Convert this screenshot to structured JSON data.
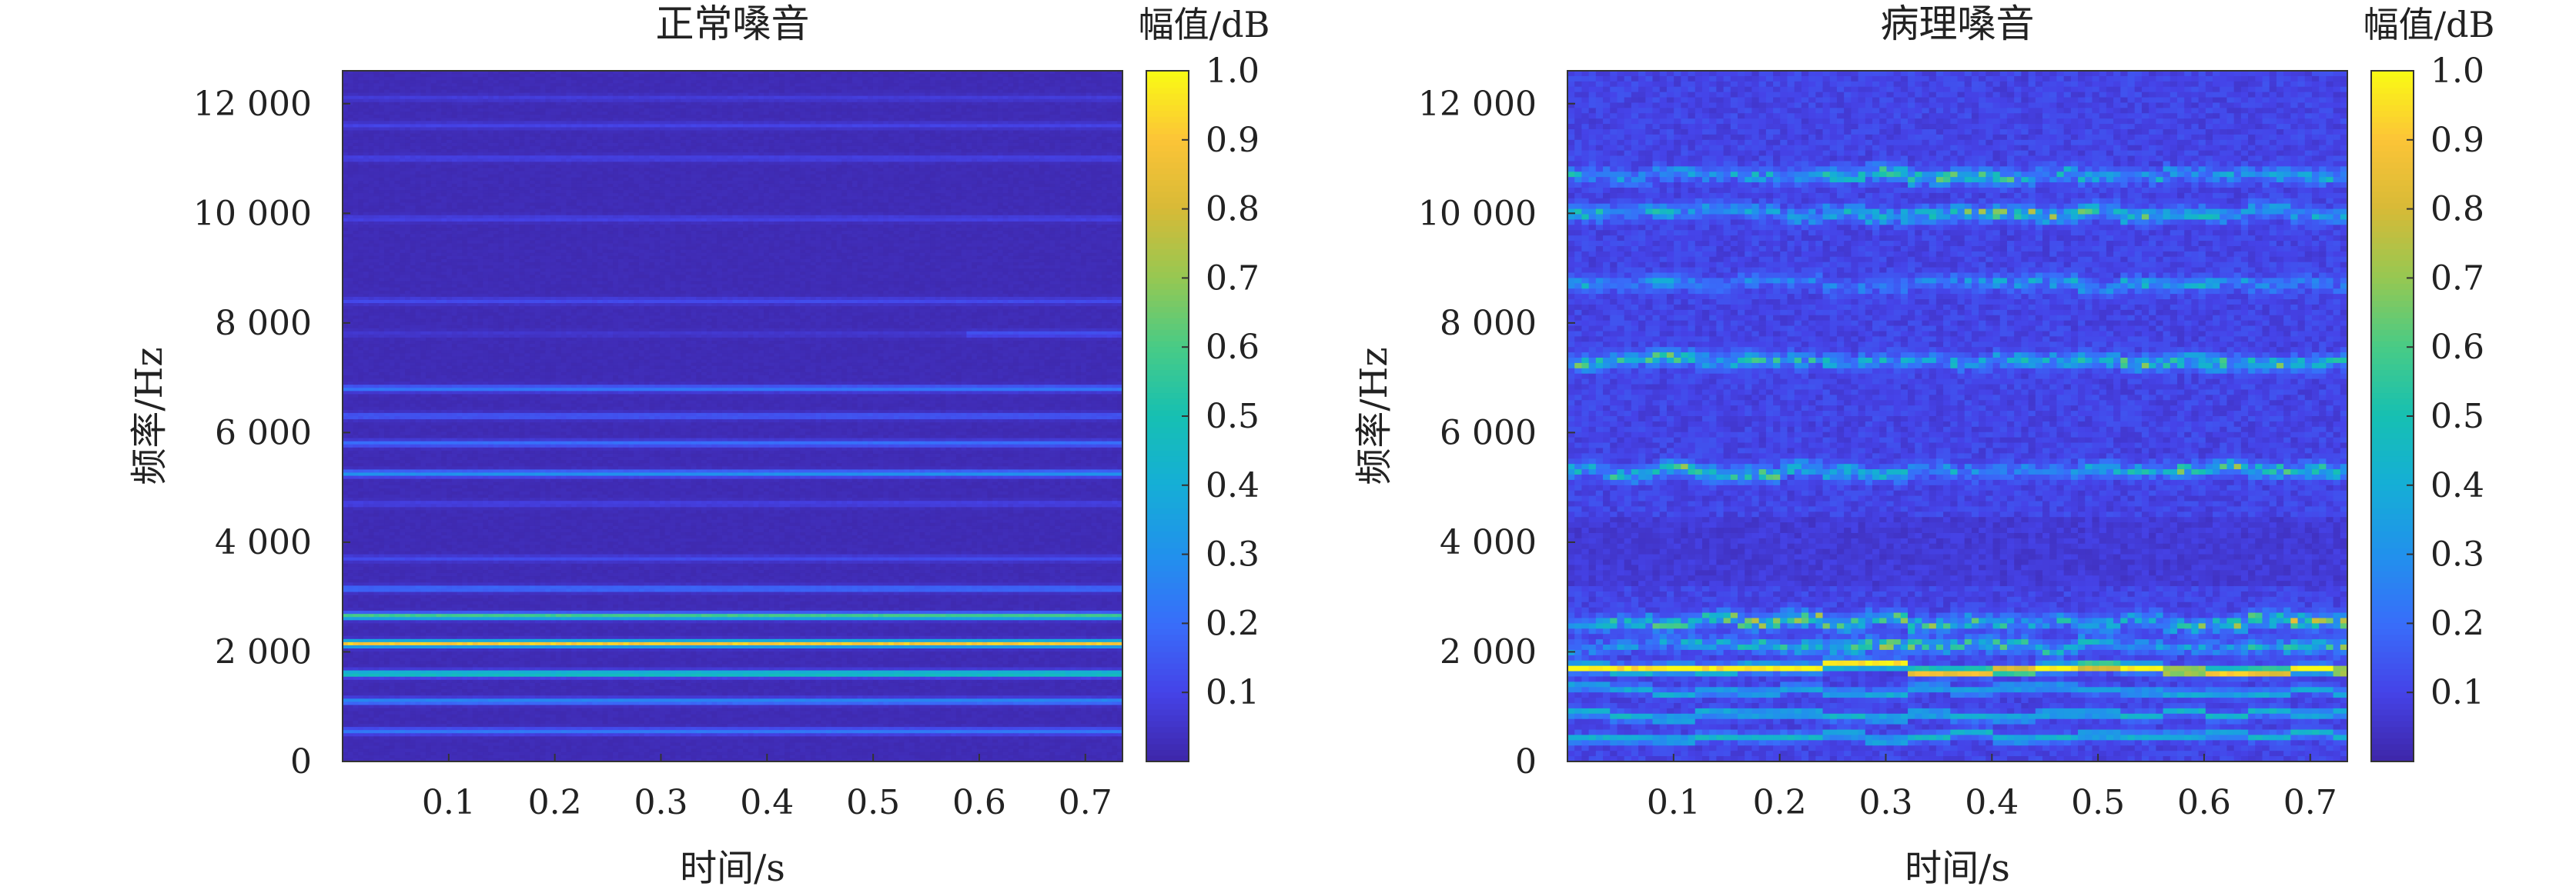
{
  "chart_data": [
    {
      "type": "heatmap",
      "title": "正常嗓音",
      "xlabel": "时间/s",
      "ylabel": "频率/Hz",
      "xlim": [
        0,
        0.735
      ],
      "ylim": [
        0,
        12600
      ],
      "x_ticks": [
        0.1,
        0.2,
        0.3,
        0.4,
        0.5,
        0.6,
        0.7
      ],
      "x_tick_labels": [
        "0.1",
        "0.2",
        "0.3",
        "0.4",
        "0.5",
        "0.6",
        "0.7"
      ],
      "y_ticks": [
        0,
        2000,
        4000,
        6000,
        8000,
        10000,
        12000
      ],
      "y_tick_labels": [
        "0",
        "2 000",
        "4 000",
        "6 000",
        "8 000",
        "10 000",
        "12 000"
      ],
      "colorbar": {
        "title": "幅值/dB",
        "range": [
          0,
          1.0
        ],
        "ticks": [
          0.1,
          0.2,
          0.3,
          0.4,
          0.5,
          0.6,
          0.7,
          0.8,
          0.9,
          1.0
        ],
        "tick_labels": [
          "0.1",
          "0.2",
          "0.3",
          "0.4",
          "0.5",
          "0.6",
          "0.7",
          "0.8",
          "0.9",
          "1.0"
        ],
        "colormap": "parula"
      },
      "background_level": 0.02,
      "bands": [
        {
          "freq": 550,
          "amp": 0.22,
          "pattern": "steady"
        },
        {
          "freq": 1100,
          "amp": 0.28,
          "pattern": "steady"
        },
        {
          "freq": 1600,
          "amp": 0.55,
          "pattern": "steady"
        },
        {
          "freq": 2150,
          "amp": 0.92,
          "pattern": "steady"
        },
        {
          "freq": 2650,
          "amp": 0.62,
          "pattern": "steady"
        },
        {
          "freq": 3150,
          "amp": 0.2,
          "pattern": "steady"
        },
        {
          "freq": 3700,
          "amp": 0.1,
          "pattern": "steady"
        },
        {
          "freq": 4700,
          "amp": 0.08,
          "pattern": "steady"
        },
        {
          "freq": 5250,
          "amp": 0.3,
          "pattern": "steady"
        },
        {
          "freq": 5800,
          "amp": 0.2,
          "pattern": "steady"
        },
        {
          "freq": 6300,
          "amp": 0.15,
          "pattern": "steady"
        },
        {
          "freq": 6800,
          "amp": 0.22,
          "pattern": "steady"
        },
        {
          "freq": 7800,
          "amp": 0.12,
          "pattern": "late"
        },
        {
          "freq": 8400,
          "amp": 0.1,
          "pattern": "steady"
        },
        {
          "freq": 9900,
          "amp": 0.08,
          "pattern": "steady"
        },
        {
          "freq": 11000,
          "amp": 0.08,
          "pattern": "steady"
        },
        {
          "freq": 11600,
          "amp": 0.08,
          "pattern": "steady"
        },
        {
          "freq": 12100,
          "amp": 0.06,
          "pattern": "steady"
        }
      ]
    },
    {
      "type": "heatmap",
      "title": "病理嗓音",
      "xlabel": "时间/s",
      "ylabel": "频率/Hz",
      "xlim": [
        0,
        0.735
      ],
      "ylim": [
        0,
        12600
      ],
      "x_ticks": [
        0.1,
        0.2,
        0.3,
        0.4,
        0.5,
        0.6,
        0.7
      ],
      "x_tick_labels": [
        "0.1",
        "0.2",
        "0.3",
        "0.4",
        "0.5",
        "0.6",
        "0.7"
      ],
      "y_ticks": [
        0,
        2000,
        4000,
        6000,
        8000,
        10000,
        12000
      ],
      "y_tick_labels": [
        "0",
        "2 000",
        "4 000",
        "6 000",
        "8 000",
        "10 000",
        "12 000"
      ],
      "colorbar": {
        "title": "幅值/dB",
        "range": [
          0,
          1.0
        ],
        "ticks": [
          0.1,
          0.2,
          0.3,
          0.4,
          0.5,
          0.6,
          0.7,
          0.8,
          0.9,
          1.0
        ],
        "tick_labels": [
          "0.1",
          "0.2",
          "0.3",
          "0.4",
          "0.5",
          "0.6",
          "0.7",
          "0.8",
          "0.9",
          "1.0"
        ],
        "colormap": "parula"
      },
      "background_level": 0.1,
      "bands": [
        {
          "freq": 450,
          "amp": 0.35,
          "pattern": "steady"
        },
        {
          "freq": 850,
          "amp": 0.35,
          "pattern": "steady"
        },
        {
          "freq": 1300,
          "amp": 0.3,
          "pattern": "steady"
        },
        {
          "freq": 1700,
          "amp": 0.95,
          "pattern": "steady"
        },
        {
          "freq": 2100,
          "amp": 0.6,
          "pattern": "speckle"
        },
        {
          "freq": 2550,
          "amp": 0.7,
          "pattern": "speckle"
        },
        {
          "freq": 5300,
          "amp": 0.55,
          "pattern": "speckle"
        },
        {
          "freq": 7300,
          "amp": 0.6,
          "pattern": "speckle"
        },
        {
          "freq": 8700,
          "amp": 0.35,
          "pattern": "speckle"
        },
        {
          "freq": 10000,
          "amp": 0.6,
          "pattern": "speckle"
        },
        {
          "freq": 10700,
          "amp": 0.55,
          "pattern": "speckle"
        }
      ]
    }
  ]
}
